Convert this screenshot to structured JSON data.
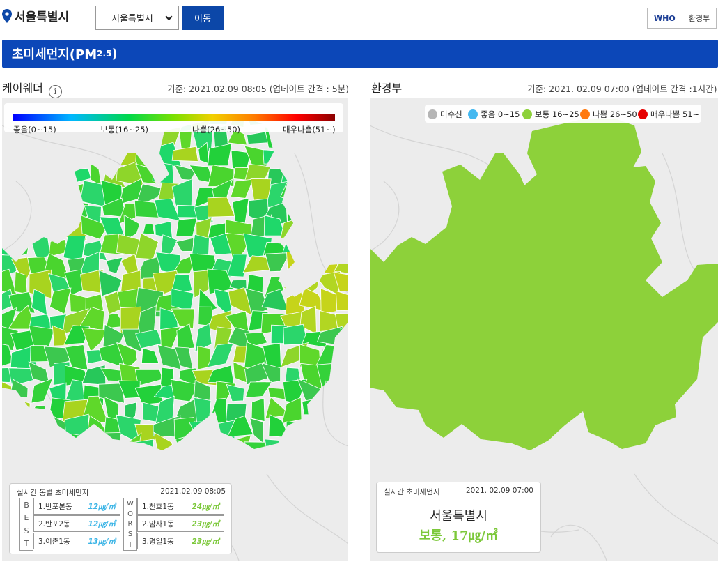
{
  "header": {
    "location_title": "서울특별시",
    "region_select_value": "서울특별시",
    "go_button": "이동",
    "standard_options": [
      "WHO",
      "환경부"
    ]
  },
  "banner": {
    "title": "초미세먼지(PM",
    "subscript": "2.5",
    "close": ")"
  },
  "left_panel": {
    "title": "케이웨더",
    "info_icon": "info-icon",
    "timestamp": "기준: 2021.02.09 08:05 (업데이트 간격 : 5분)",
    "legend": [
      "좋음(0~15)",
      "보통(16~25)",
      "나쁨(26~50)",
      "매우나쁨(51~)"
    ],
    "ranking": {
      "title": "실시간 동별 초미세먼지",
      "date": "2021.02.09 08:05",
      "best_label": [
        "B",
        "E",
        "S",
        "T"
      ],
      "worst_label": [
        "W",
        "O",
        "R",
        "S",
        "T"
      ],
      "best": [
        {
          "name": "1.반포본동",
          "value": "12㎍/㎥"
        },
        {
          "name": "2.반포2동",
          "value": "12㎍/㎥"
        },
        {
          "name": "3.이촌1동",
          "value": "13㎍/㎥"
        }
      ],
      "worst": [
        {
          "name": "1.천호1동",
          "value": "24㎍/㎥"
        },
        {
          "name": "2.암사1동",
          "value": "23㎍/㎥"
        },
        {
          "name": "3.명일1동",
          "value": "23㎍/㎥"
        }
      ],
      "colors": {
        "best": "#3ab4e6",
        "worst": "#7cc83a"
      }
    }
  },
  "right_panel": {
    "title": "환경부",
    "timestamp": "기준: 2021. 02.09 07:00 (업데이트 간격 :1시간)",
    "legend": [
      {
        "label": "미수신",
        "color": "#b5b5b5"
      },
      {
        "label": "좋음 0~15",
        "color": "#44b8f0"
      },
      {
        "label": "보통 16~25",
        "color": "#8dd13a"
      },
      {
        "label": "나쁨 26~50",
        "color": "#ff7a10"
      },
      {
        "label": "매우나쁨 51~",
        "color": "#e60000"
      }
    ],
    "summary": {
      "title": "실시간 초미세먼지",
      "date": "2021. 02.09 07:00",
      "city": "서울특별시",
      "value_text": "보통, 17㎍/㎥"
    }
  },
  "colors": {
    "brand": "#0c47b8",
    "moderate": "#8dd13a"
  }
}
